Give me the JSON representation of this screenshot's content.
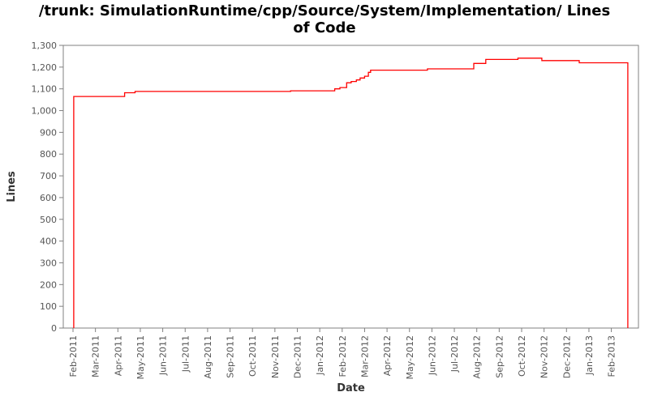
{
  "title_lines": {
    "0": "/trunk: SimulationRuntime/cpp/Source/System/Implementation/ Lines",
    "1": "of Code"
  },
  "chart_data": {
    "type": "line",
    "style": "step-after",
    "title": "/trunk: SimulationRuntime/cpp/Source/System/Implementation/ Lines of Code",
    "xlabel": "Date",
    "ylabel": "Lines",
    "legend": "none",
    "grid": false,
    "line_color": "#ff0000",
    "frame_color": "#808080",
    "tick_label_color": "#555555",
    "axis_label_color": "#333333",
    "ylim": [
      0,
      1300
    ],
    "y_ticks": [
      0,
      100,
      200,
      300,
      400,
      500,
      600,
      700,
      800,
      900,
      1000,
      1100,
      1200,
      1300
    ],
    "x_tick_labels": [
      "Feb-2011",
      "Mar-2011",
      "Apr-2011",
      "May-2011",
      "Jun-2011",
      "Jul-2011",
      "Aug-2011",
      "Sep-2011",
      "Oct-2011",
      "Nov-2011",
      "Dec-2011",
      "Jan-2012",
      "Feb-2012",
      "Mar-2012",
      "Apr-2012",
      "May-2012",
      "Jun-2012",
      "Jul-2012",
      "Aug-2012",
      "Sep-2012",
      "Oct-2012",
      "Nov-2012",
      "Dec-2012",
      "Jan-2013",
      "Feb-2013"
    ],
    "points": [
      {
        "date": "2011-02-02",
        "value": 0
      },
      {
        "date": "2011-02-02",
        "value": 1065
      },
      {
        "date": "2011-04-10",
        "value": 1082
      },
      {
        "date": "2011-04-24",
        "value": 1088
      },
      {
        "date": "2011-11-22",
        "value": 1091
      },
      {
        "date": "2012-01-21",
        "value": 1100
      },
      {
        "date": "2012-01-28",
        "value": 1106
      },
      {
        "date": "2012-02-07",
        "value": 1128
      },
      {
        "date": "2012-02-13",
        "value": 1134
      },
      {
        "date": "2012-02-20",
        "value": 1141
      },
      {
        "date": "2012-02-25",
        "value": 1150
      },
      {
        "date": "2012-03-01",
        "value": 1158
      },
      {
        "date": "2012-03-06",
        "value": 1176
      },
      {
        "date": "2012-03-09",
        "value": 1186
      },
      {
        "date": "2012-05-25",
        "value": 1192
      },
      {
        "date": "2012-07-27",
        "value": 1217
      },
      {
        "date": "2012-08-13",
        "value": 1235
      },
      {
        "date": "2012-09-26",
        "value": 1241
      },
      {
        "date": "2012-10-28",
        "value": 1230
      },
      {
        "date": "2012-12-18",
        "value": 1220
      },
      {
        "date": "2013-02-23",
        "value": 0
      }
    ]
  }
}
